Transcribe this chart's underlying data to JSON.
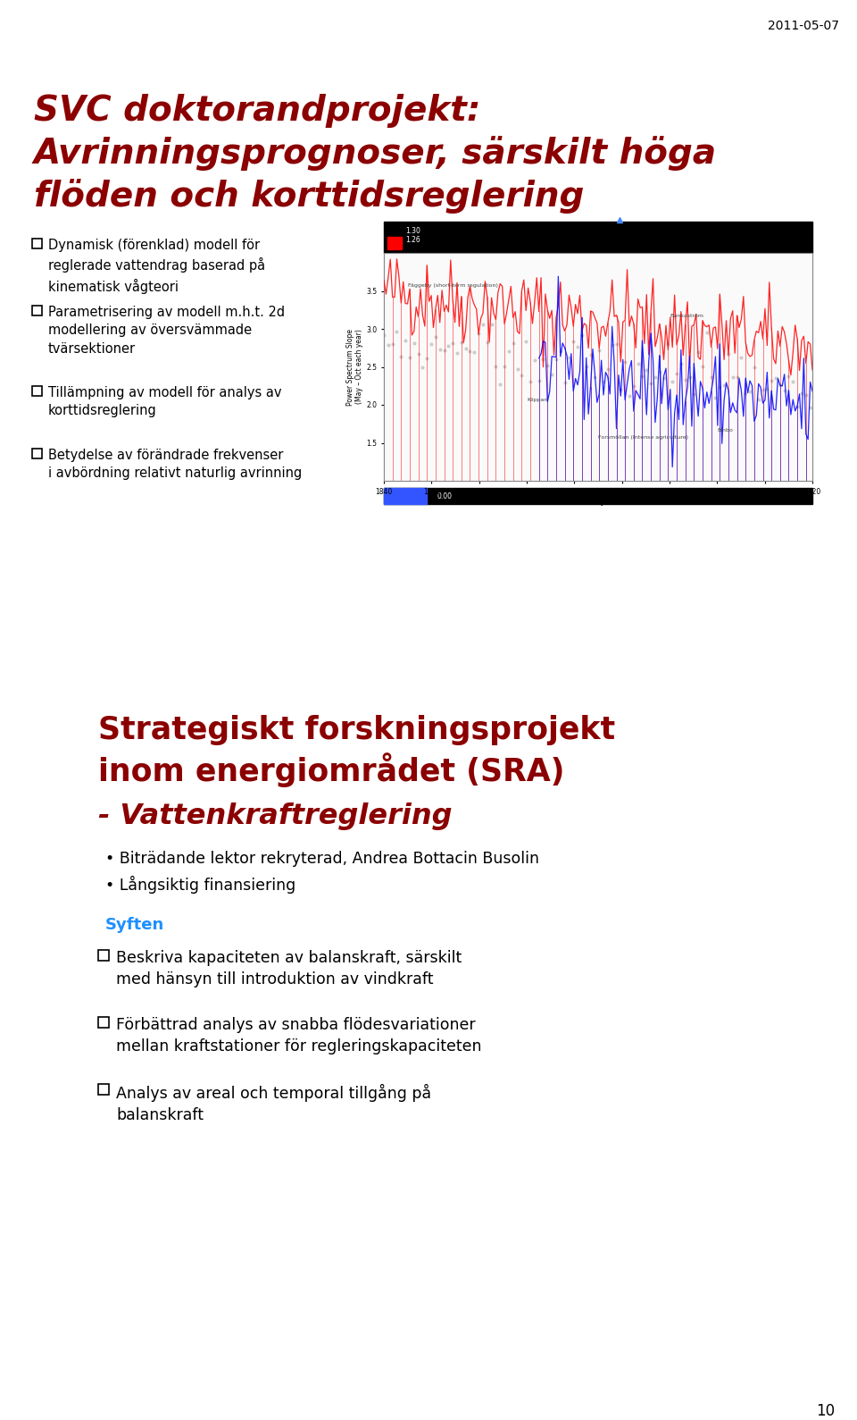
{
  "date_text": "2011-05-07",
  "title_line1": "SVC doktorandprojekt:",
  "title_line2": "Avrinningsprognoser, särskilt höga",
  "title_line3": "flöden och korttidsreglering",
  "title_color": "#8B0000",
  "left_bullets": [
    "Dynamisk (förenklad) modell för\nreglerade vattendrag baserad på\nkinematisk vågteori",
    "Parametrisering av modell m.h.t. 2d\nmodellering av översvämmade\ntvärsektioner",
    "Tillämpning av modell för analys av\nkorttidsreglering",
    "Betydelse av förändrade frekvenser\ni avbördning relativt naturlig avrinning"
  ],
  "section2_title1": "Strategiskt forskningsprojekt",
  "section2_title2": "inom energiområdet (SRA)",
  "section2_subtitle": "- Vattenkraftreglering",
  "section2_subtitle_color": "#8B0000",
  "bullet2_items": [
    "Biträdande lektor rekryterad, Andrea Bottacin Busolin",
    "Långsiktig finansiering"
  ],
  "syften_label": "Syften",
  "syften_color": "#1E90FF",
  "checkbox_items": [
    "Beskriva kapaciteten av balanskraft, särskilt\nmed hänsyn till introduktion av vindkraft",
    "Förbättrad analys av snabba flödesvariationer\nmellan kraftstationer för regleringskapaciteten",
    "Analys av areal och temporal tillgång på\nbalanskraft"
  ],
  "page_number": "10",
  "bg_color": "#FFFFFF"
}
